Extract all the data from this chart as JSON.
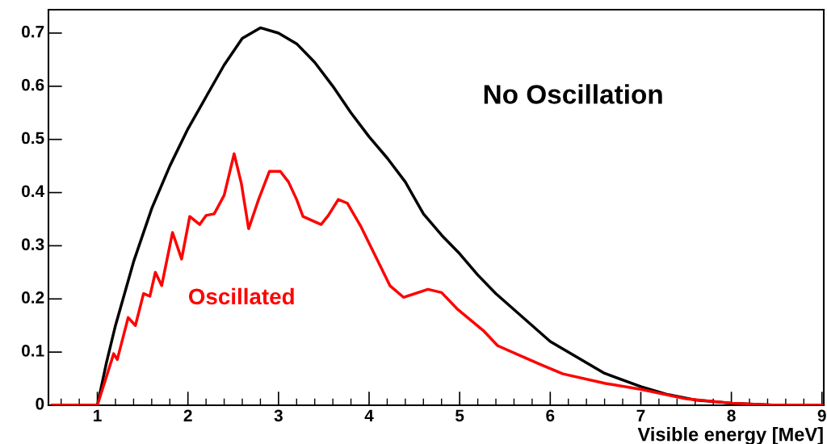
{
  "chart_data": {
    "type": "line",
    "xlabel": "Visible energy [MeV]",
    "xlim": [
      0.46,
      9.02
    ],
    "xticks": [
      1,
      2,
      3,
      4,
      5,
      6,
      7,
      8,
      9
    ],
    "ylim": [
      0,
      0.744
    ],
    "yticks": [
      0,
      0.1,
      0.2,
      0.3,
      0.4,
      0.5,
      0.6,
      0.7
    ],
    "grid": false,
    "legend": false,
    "marker": "none",
    "line_style": "solid",
    "series": [
      {
        "name": "No Oscillation",
        "color": "#000000",
        "x": [
          0.5,
          1.0,
          1.1,
          1.2,
          1.4,
          1.6,
          1.8,
          2.0,
          2.2,
          2.4,
          2.6,
          2.8,
          3.0,
          3.2,
          3.4,
          3.6,
          3.8,
          4.0,
          4.2,
          4.4,
          4.6,
          4.8,
          5.0,
          5.2,
          5.4,
          5.6,
          5.8,
          6.0,
          6.3,
          6.6,
          7.0,
          7.3,
          7.6,
          8.0,
          8.5,
          9.0
        ],
        "values": [
          0,
          0,
          0.08,
          0.15,
          0.27,
          0.37,
          0.45,
          0.52,
          0.58,
          0.64,
          0.69,
          0.71,
          0.7,
          0.68,
          0.645,
          0.6,
          0.55,
          0.505,
          0.465,
          0.42,
          0.36,
          0.32,
          0.285,
          0.245,
          0.21,
          0.18,
          0.15,
          0.12,
          0.09,
          0.06,
          0.035,
          0.02,
          0.01,
          0.004,
          0,
          0
        ]
      },
      {
        "name": "Oscillated",
        "color": "#ff0000",
        "x": [
          0.5,
          1.0,
          1.18,
          1.22,
          1.34,
          1.42,
          1.51,
          1.58,
          1.64,
          1.71,
          1.83,
          1.93,
          2.02,
          2.13,
          2.2,
          2.29,
          2.4,
          2.51,
          2.59,
          2.67,
          2.78,
          2.9,
          3.02,
          3.11,
          3.2,
          3.27,
          3.47,
          3.55,
          3.66,
          3.76,
          3.91,
          4.23,
          4.38,
          4.65,
          4.8,
          4.98,
          5.27,
          5.42,
          5.66,
          5.9,
          6.14,
          6.61,
          7.0,
          7.5,
          8.0,
          8.5,
          9.0
        ],
        "values": [
          0,
          0,
          0.097,
          0.086,
          0.165,
          0.15,
          0.21,
          0.205,
          0.25,
          0.225,
          0.325,
          0.275,
          0.355,
          0.34,
          0.357,
          0.36,
          0.395,
          0.473,
          0.417,
          0.332,
          0.387,
          0.44,
          0.44,
          0.42,
          0.387,
          0.355,
          0.34,
          0.357,
          0.387,
          0.38,
          0.336,
          0.225,
          0.203,
          0.218,
          0.212,
          0.18,
          0.139,
          0.112,
          0.094,
          0.076,
          0.059,
          0.041,
          0.03,
          0.012,
          0.004,
          0,
          0
        ]
      }
    ]
  }
}
